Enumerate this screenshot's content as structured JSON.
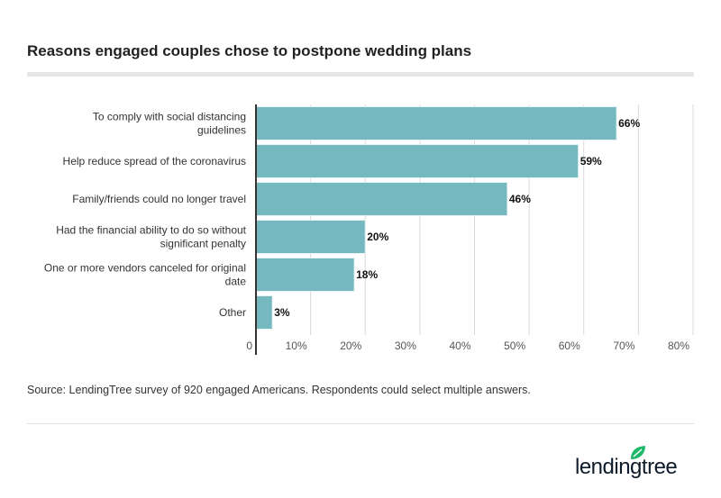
{
  "title": "Reasons engaged couples chose to postpone wedding plans",
  "source": "Source: LendingTree survey of 920 engaged Americans. Respondents could select multiple answers.",
  "logo_text": "lendingtree",
  "colors": {
    "bar": "#76b8c0",
    "logo_leaf": "#1eb86a",
    "logo_text": "#0d1b2a"
  },
  "chart_data": {
    "type": "bar",
    "orientation": "horizontal",
    "title": "Reasons engaged couples chose to postpone wedding plans",
    "categories": [
      [
        "To comply with social distancing",
        "guidelines"
      ],
      [
        "Help reduce spread of the coronavirus"
      ],
      [
        "Family/friends could no longer travel"
      ],
      [
        "Had the financial ability to do so without",
        "significant penalty"
      ],
      [
        "One or more vendors canceled for original",
        "date"
      ],
      [
        "Other"
      ]
    ],
    "values": [
      66,
      59,
      46,
      20,
      18,
      3
    ],
    "data_labels": [
      "66%",
      "59%",
      "46%",
      "20%",
      "18%",
      "3%"
    ],
    "xlim": [
      0,
      80
    ],
    "ticks": [
      0,
      10,
      20,
      30,
      40,
      50,
      60,
      70,
      80
    ],
    "tick_labels": [
      "0",
      "10%",
      "20%",
      "30%",
      "40%",
      "50%",
      "60%",
      "70%",
      "80%"
    ],
    "grid": true,
    "xlabel": "",
    "ylabel": ""
  }
}
